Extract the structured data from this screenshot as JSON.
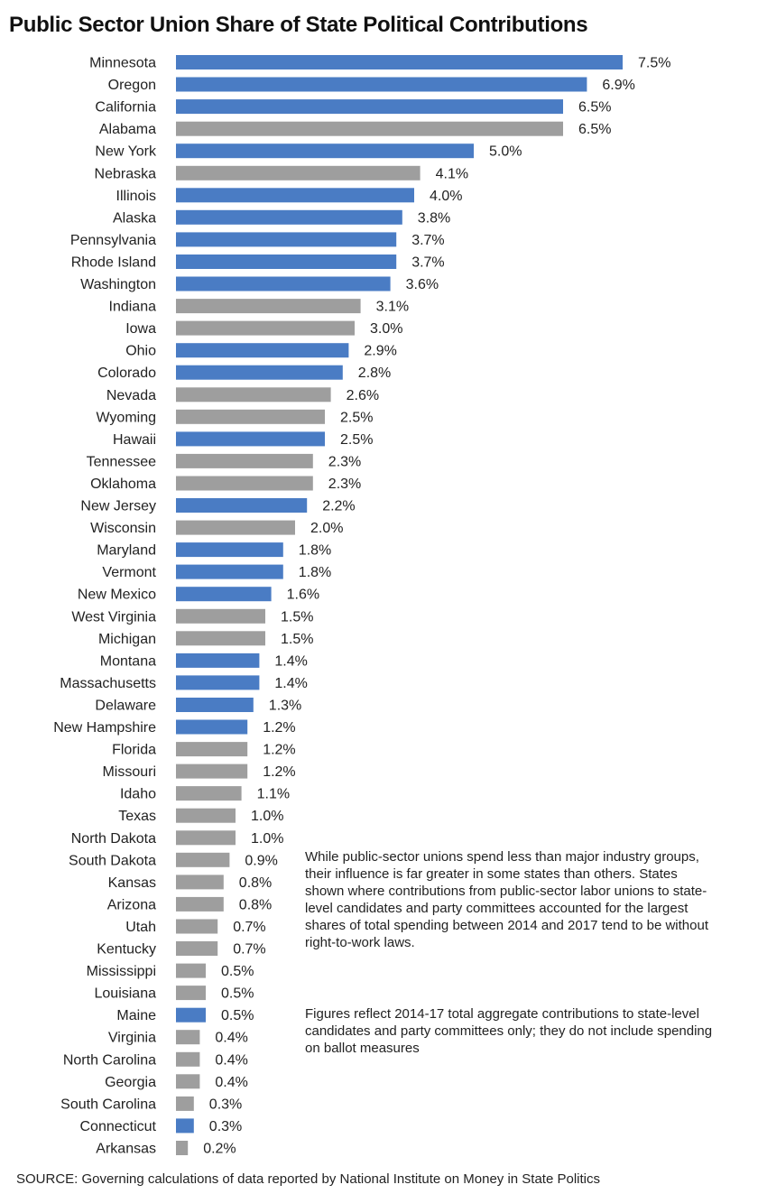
{
  "chart_data": {
    "type": "bar",
    "orientation": "horizontal",
    "title": "Public Sector Union Share of State Political Contributions",
    "xlabel": "",
    "ylabel": "",
    "grid": false,
    "value_suffix": "%",
    "xlim": [
      0,
      7.5
    ],
    "colors": {
      "right_to_work": "#9e9e9e",
      "non_right_to_work": "#4a7cc4"
    },
    "categories": [
      "Minnesota",
      "Oregon",
      "California",
      "Alabama",
      "New York",
      "Nebraska",
      "Illinois",
      "Alaska",
      "Pennsylvania",
      "Rhode Island",
      "Washington",
      "Indiana",
      "Iowa",
      "Ohio",
      "Colorado",
      "Nevada",
      "Wyoming",
      "Hawaii",
      "Tennessee",
      "Oklahoma",
      "New Jersey",
      "Wisconsin",
      "Maryland",
      "Vermont",
      "New Mexico",
      "West Virginia",
      "Michigan",
      "Montana",
      "Massachusetts",
      "Delaware",
      "New Hampshire",
      "Florida",
      "Missouri",
      "Idaho",
      "Texas",
      "North Dakota",
      "South Dakota",
      "Kansas",
      "Arizona",
      "Utah",
      "Kentucky",
      "Mississippi",
      "Louisiana",
      "Maine",
      "Virginia",
      "North Carolina",
      "Georgia",
      "South Carolina",
      "Connecticut",
      "Arkansas"
    ],
    "values": [
      7.5,
      6.9,
      6.5,
      6.5,
      5.0,
      4.1,
      4.0,
      3.8,
      3.7,
      3.7,
      3.6,
      3.1,
      3.0,
      2.9,
      2.8,
      2.6,
      2.5,
      2.5,
      2.3,
      2.3,
      2.2,
      2.0,
      1.8,
      1.8,
      1.6,
      1.5,
      1.5,
      1.4,
      1.4,
      1.3,
      1.2,
      1.2,
      1.2,
      1.1,
      1.0,
      1.0,
      0.9,
      0.8,
      0.8,
      0.7,
      0.7,
      0.5,
      0.5,
      0.5,
      0.4,
      0.4,
      0.4,
      0.3,
      0.3,
      0.2
    ],
    "right_to_work": [
      false,
      false,
      false,
      true,
      false,
      true,
      false,
      false,
      false,
      false,
      false,
      true,
      true,
      false,
      false,
      true,
      true,
      false,
      true,
      true,
      false,
      true,
      false,
      false,
      false,
      true,
      true,
      false,
      false,
      false,
      false,
      true,
      true,
      true,
      true,
      true,
      true,
      true,
      true,
      true,
      true,
      true,
      true,
      false,
      true,
      true,
      true,
      true,
      false,
      true
    ]
  },
  "notes": {
    "description": "While public-sector unions spend less than major industry groups, their influence is far greater in some states than others. States shown where contributions from public-sector labor unions to state-level candidates and party committees accounted for the largest shares of total spending between 2014 and 2017 tend to be without right-to-work laws.",
    "figures": "Figures reflect 2014-17 total aggregate contributions to state-level candidates and party committees only; they do not include spending on ballot measures"
  },
  "source": "SOURCE: Governing calculations of data reported by National Institute on Money in State Politics"
}
